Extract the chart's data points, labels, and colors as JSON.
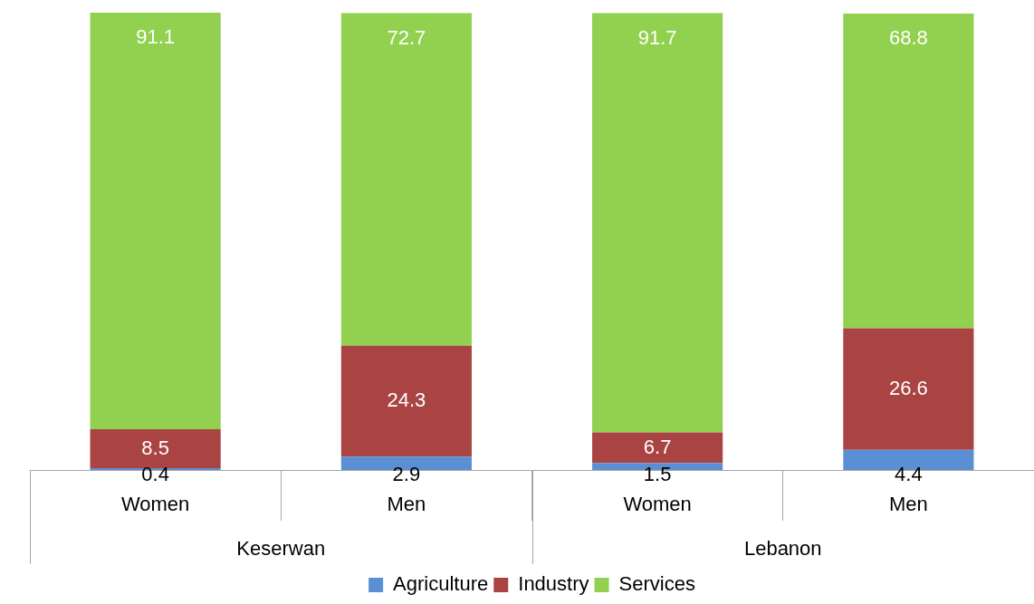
{
  "chart_data": {
    "type": "bar",
    "stacked": true,
    "data_labels": true,
    "legend": "bottom",
    "grid": false,
    "categories": [
      "Women",
      "Men",
      "Women",
      "Men"
    ],
    "annotations": [
      "Keserwan",
      "Lebanon"
    ],
    "series": [
      {
        "name": "Agriculture",
        "color": "#5b8fd3",
        "values": [
          0.4,
          2.9,
          1.5,
          4.4
        ]
      },
      {
        "name": "Industry",
        "color": "#a94443",
        "values": [
          8.5,
          24.3,
          6.7,
          26.6
        ]
      },
      {
        "name": "Services",
        "color": "#92d050",
        "values": [
          91.1,
          72.7,
          91.7,
          68.8
        ]
      }
    ]
  }
}
